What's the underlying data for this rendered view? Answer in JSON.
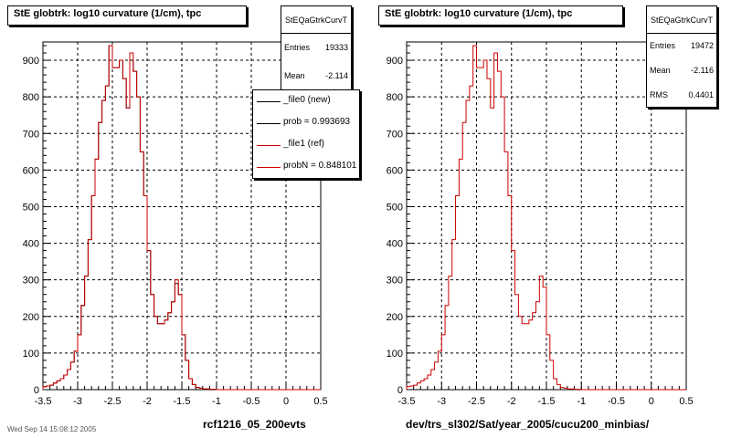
{
  "colors": {
    "new": "#000000",
    "ref": "#cc0000",
    "grid": "#000000"
  },
  "footer": "Wed Sep 14 15:08:12 2005",
  "chart_data": [
    {
      "type": "histogram",
      "title": "StE globtrk: log10 curvature (1/cm), tpc",
      "xlabel": "rcf1216_05_200evts",
      "xlim": [
        -3.5,
        0.5
      ],
      "ylim": [
        0,
        950
      ],
      "xticks": [
        -3.5,
        -3,
        -2.5,
        -2,
        -1.5,
        -1,
        -0.5,
        0,
        0.5
      ],
      "xtick_labels": [
        "-3.5",
        "-3",
        "-2.5",
        "-2",
        "-1.5",
        "-1",
        "-0.5",
        "0",
        "0.5"
      ],
      "yticks": [
        0,
        100,
        200,
        300,
        400,
        500,
        600,
        700,
        800,
        900
      ],
      "ytick_labels": [
        "0",
        "100",
        "200",
        "300",
        "400",
        "500",
        "600",
        "700",
        "800",
        "900"
      ],
      "grid": true,
      "bin_width": 0.05,
      "stats": {
        "name": "StEQaGtrkCurvT",
        "rows": [
          {
            "label": "Entries",
            "value": "19333"
          },
          {
            "label": "Mean",
            "value": "-2.114"
          }
        ]
      },
      "legend": [
        {
          "label": "_file0 (new)",
          "color": "#000000"
        },
        {
          "label": "prob = 0.993693",
          "color": "#000000"
        },
        {
          "label": "_file1 (ref)",
          "color": "#cc0000"
        },
        {
          "label": "probN = 0.848101",
          "color": "#cc0000"
        }
      ],
      "series": [
        {
          "name": "_file0 (new)",
          "color": "#000000",
          "x_start": -3.5,
          "values": [
            8,
            10,
            12,
            18,
            24,
            30,
            40,
            55,
            75,
            105,
            150,
            230,
            310,
            410,
            530,
            630,
            730,
            790,
            830,
            940,
            880,
            880,
            900,
            850,
            770,
            900,
            870,
            800,
            650,
            530,
            380,
            260,
            200,
            180,
            180,
            190,
            210,
            240,
            290,
            260,
            150,
            80,
            30,
            14,
            6,
            4,
            2,
            2,
            1,
            1,
            0,
            0,
            0,
            0,
            0,
            0,
            0,
            0,
            0,
            0,
            0,
            0,
            0,
            0,
            0,
            0,
            0,
            0,
            0,
            0,
            0,
            0,
            0,
            0,
            0,
            0,
            0,
            0,
            0,
            0
          ]
        },
        {
          "name": "_file1 (ref)",
          "color": "#cc0000",
          "x_start": -3.5,
          "values": [
            8,
            10,
            12,
            18,
            24,
            30,
            40,
            55,
            75,
            105,
            150,
            230,
            310,
            410,
            530,
            630,
            730,
            790,
            830,
            940,
            880,
            880,
            900,
            850,
            770,
            920,
            870,
            800,
            650,
            530,
            380,
            260,
            200,
            180,
            180,
            190,
            210,
            240,
            300,
            260,
            150,
            80,
            30,
            14,
            6,
            4,
            2,
            2,
            1,
            1,
            0,
            0,
            0,
            0,
            0,
            0,
            0,
            0,
            0,
            0,
            0,
            0,
            0,
            0,
            0,
            0,
            0,
            0,
            0,
            0,
            0,
            0,
            0,
            0,
            0,
            0,
            0,
            0,
            0,
            0
          ]
        }
      ]
    },
    {
      "type": "histogram",
      "title": "StE globtrk: log10 curvature (1/cm), tpc",
      "xlabel": "dev/trs_sl302/Sat/year_2005/cucu200_minbias/",
      "xlim": [
        -3.5,
        0.5
      ],
      "ylim": [
        0,
        950
      ],
      "xticks": [
        -3.5,
        -3,
        -2.5,
        -2,
        -1.5,
        -1,
        -0.5,
        0,
        0.5
      ],
      "xtick_labels": [
        "-3.5",
        "-3",
        "-2.5",
        "-2",
        "-1.5",
        "-1",
        "-0.5",
        "0",
        "0.5"
      ],
      "yticks": [
        0,
        100,
        200,
        300,
        400,
        500,
        600,
        700,
        800,
        900
      ],
      "ytick_labels": [
        "0",
        "100",
        "200",
        "300",
        "400",
        "500",
        "600",
        "700",
        "800",
        "900"
      ],
      "grid": true,
      "bin_width": 0.05,
      "stats": {
        "name": "StEQaGtrkCurvT",
        "rows": [
          {
            "label": "Entries",
            "value": "19472"
          },
          {
            "label": "Mean",
            "value": "-2.116"
          },
          {
            "label": "RMS",
            "value": "0.4401"
          }
        ]
      },
      "series": [
        {
          "name": "_file1 (ref)",
          "color": "#cc0000",
          "x_start": -3.5,
          "values": [
            8,
            10,
            12,
            18,
            24,
            30,
            40,
            55,
            75,
            105,
            150,
            230,
            310,
            410,
            530,
            630,
            730,
            790,
            830,
            940,
            880,
            880,
            900,
            850,
            770,
            920,
            870,
            800,
            650,
            530,
            380,
            260,
            200,
            180,
            180,
            190,
            210,
            240,
            310,
            280,
            150,
            80,
            30,
            14,
            6,
            4,
            2,
            2,
            1,
            1,
            0,
            0,
            0,
            0,
            0,
            0,
            0,
            0,
            0,
            0,
            0,
            0,
            0,
            0,
            0,
            0,
            0,
            0,
            0,
            0,
            0,
            0,
            0,
            0,
            0,
            0,
            0,
            0,
            0,
            0
          ]
        }
      ]
    }
  ]
}
